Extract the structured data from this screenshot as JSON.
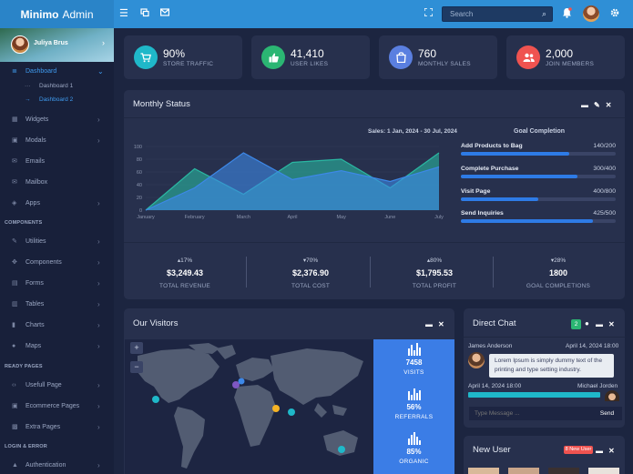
{
  "app": {
    "brand_bold": "Minimo",
    "brand_rest": "Admin"
  },
  "topbar": {
    "search_placeholder": "Search"
  },
  "profile": {
    "name": "Juliya Brus"
  },
  "sidebar": {
    "dashboard": "Dashboard",
    "dashboard_sub": [
      "Dashboard 1",
      "Dashboard 2"
    ],
    "main_items": [
      "Widgets",
      "Modals",
      "Emails",
      "Mailbox",
      "Apps"
    ],
    "components_header": "COMPONENTS",
    "component_items": [
      "Utilities",
      "Components",
      "Forms",
      "Tables",
      "Charts",
      "Maps"
    ],
    "ready_header": "READY PAGES",
    "ready_items": [
      "Usefull Page",
      "Ecommerce Pages",
      "Extra Pages"
    ],
    "login_header": "LOGIN & ERROR",
    "login_items": [
      "Authentication"
    ]
  },
  "stats": [
    {
      "value": "90%",
      "label": "STORE TRAFFIC",
      "color": "#1fb8c9",
      "icon": "cart-icon"
    },
    {
      "value": "41,410",
      "label": "USER LIKES",
      "color": "#2bb673",
      "icon": "thumbs-up-icon"
    },
    {
      "value": "760",
      "label": "MONTHLY SALES",
      "color": "#5a7fe0",
      "icon": "shopping-bag-icon"
    },
    {
      "value": "2,000",
      "label": "JOIN MEMBERS",
      "color": "#ef5350",
      "icon": "users-icon"
    }
  ],
  "monthly": {
    "title": "Monthly Status",
    "goal_title": "Goal Completion",
    "goals": [
      {
        "name": "Add Products to Bag",
        "value": "140/200",
        "fraction": 0.7
      },
      {
        "name": "Complete Purchase",
        "value": "300/400",
        "fraction": 0.75
      },
      {
        "name": "Visit Page",
        "value": "400/800",
        "fraction": 0.5
      },
      {
        "name": "Send Inquiries",
        "value": "425/500",
        "fraction": 0.85
      }
    ],
    "metrics": [
      {
        "pct": "17%",
        "dir": "up",
        "amount": "$3,249.43",
        "label": "TOTAL REVENUE"
      },
      {
        "pct": "70%",
        "dir": "down",
        "amount": "$2,376.90",
        "label": "TOTAL COST"
      },
      {
        "pct": "80%",
        "dir": "up",
        "amount": "$1,795.53",
        "label": "TOTAL PROFIT"
      },
      {
        "pct": "28%",
        "dir": "down",
        "amount": "1800",
        "label": "GOAL COMPLETIONS"
      }
    ]
  },
  "chart_data": {
    "type": "area",
    "title": "Sales: 1 Jan, 2024 - 30 Jul, 2024",
    "categories": [
      "January",
      "February",
      "March",
      "April",
      "May",
      "June",
      "July"
    ],
    "ylim": [
      0,
      100
    ],
    "yticks": [
      0,
      20,
      40,
      60,
      80,
      100
    ],
    "series": [
      {
        "values": [
          0,
          65,
          25,
          75,
          80,
          35,
          90
        ],
        "color": "#2ab7a2"
      },
      {
        "values": [
          0,
          35,
          90,
          48,
          62,
          45,
          68
        ],
        "color": "#3d88e8"
      }
    ]
  },
  "visitors": {
    "title": "Our Visitors",
    "zoom_in": "+",
    "zoom_out": "−",
    "stats": [
      {
        "value": "7458",
        "label": "VISITS"
      },
      {
        "value": "56%",
        "label": "REFERRALS"
      },
      {
        "value": "85%",
        "label": "ORGANIC"
      }
    ]
  },
  "chat": {
    "title": "Direct Chat",
    "badge": "2",
    "messages": [
      {
        "name": "James Anderson",
        "time": "April 14, 2024 18:00",
        "text": "Lorem Ipsum is simply dummy text of the printing and type setting industry."
      },
      {
        "name": "Michael Jorden",
        "time": "April 14, 2024 18:00",
        "text": ""
      }
    ],
    "input_placeholder": "Type Message ...",
    "send": "Send"
  },
  "new_user": {
    "title": "New User",
    "badge": "8 New User"
  }
}
